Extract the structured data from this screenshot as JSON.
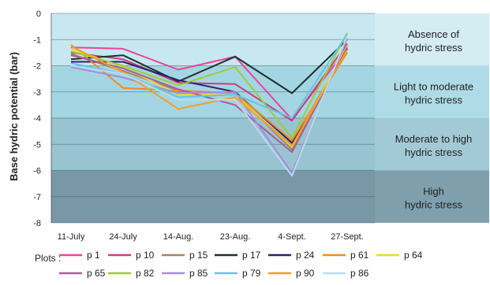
{
  "chart_data": {
    "type": "line",
    "title": "",
    "xlabel": "",
    "ylabel": "Base hydric potential (bar)",
    "ylim": [
      -8,
      0
    ],
    "yticks": [
      "0",
      "-1",
      "-2",
      "-3",
      "-4",
      "-5",
      "-6",
      "-7",
      "-8"
    ],
    "categories": [
      "11-July",
      "24-July",
      "14-Aug.",
      "23-Aug.",
      "4-Sept.",
      "27-Sept."
    ],
    "grid": true,
    "legend_position": "bottom",
    "legend_title": "Plots :",
    "zones": [
      {
        "from": 0,
        "to": -2,
        "label_lines": [
          "Absence of",
          "hydric stress"
        ],
        "color": "#d3edf3",
        "band_color": "#c7e8f0"
      },
      {
        "from": -2,
        "to": -4,
        "label_lines": [
          "Light to moderate",
          "hydric stress"
        ],
        "color": "#aedbe6",
        "band_color": "#a3d6e2"
      },
      {
        "from": -4,
        "to": -6,
        "label_lines": [
          "Moderate to high",
          "hydric stress"
        ],
        "color": "#a2cad6",
        "band_color": "#98c4d1"
      },
      {
        "from": -6,
        "to": -8,
        "label_lines": [
          "High",
          "hydric stress"
        ],
        "color": "#7f9fad",
        "band_color": "#7898a7"
      }
    ],
    "series": [
      {
        "name": "p 1",
        "color": "#e8469a",
        "values": [
          -1.3,
          -1.35,
          -2.15,
          -1.65,
          -4.05,
          -1.35
        ]
      },
      {
        "name": "p 10",
        "color": "#c8407a",
        "values": [
          -1.5,
          -1.75,
          -2.65,
          -2.7,
          -4.1,
          -1.15
        ]
      },
      {
        "name": "p 15",
        "color": "#a08660",
        "values": [
          -1.55,
          -2.2,
          -2.95,
          -3.05,
          -5.2,
          -1.2
        ]
      },
      {
        "name": "p 17",
        "color": "#1e3030",
        "values": [
          -1.75,
          -1.6,
          -2.6,
          -1.65,
          -3.05,
          -1.0
        ]
      },
      {
        "name": "p 24",
        "color": "#2e1e6e",
        "values": [
          -1.85,
          -1.85,
          -2.55,
          -3.0,
          -4.95,
          -1.35
        ]
      },
      {
        "name": "p 61",
        "color": "#f08a25",
        "values": [
          -1.2,
          -2.85,
          -2.95,
          -3.05,
          -4.85,
          -1.5
        ]
      },
      {
        "name": "p 64",
        "color": "#e8d836",
        "values": [
          -1.35,
          -2.05,
          -3.1,
          -3.1,
          -5.1,
          -1.25
        ]
      },
      {
        "name": "p 65",
        "color": "#b05a9a",
        "values": [
          -1.6,
          -2.1,
          -2.9,
          -3.5,
          -5.3,
          -1.3
        ]
      },
      {
        "name": "p 82",
        "color": "#9ccc3c",
        "values": [
          -1.45,
          -2.0,
          -2.75,
          -2.05,
          -4.75,
          -0.75
        ]
      },
      {
        "name": "p 85",
        "color": "#a88ad8",
        "values": [
          -2.05,
          -2.45,
          -3.05,
          -3.0,
          -6.1,
          -0.95
        ]
      },
      {
        "name": "p 79",
        "color": "#64c4e4",
        "values": [
          -1.9,
          -2.3,
          -3.2,
          -3.1,
          -4.0,
          -0.8
        ]
      },
      {
        "name": "p 90",
        "color": "#f0a028",
        "values": [
          -1.25,
          -2.25,
          -3.65,
          -3.2,
          -5.05,
          -1.4
        ]
      },
      {
        "name": "p 86",
        "color": "#b8dcee",
        "values": [
          -2.0,
          -2.3,
          -3.3,
          -3.3,
          -6.2,
          -0.85
        ]
      }
    ]
  }
}
